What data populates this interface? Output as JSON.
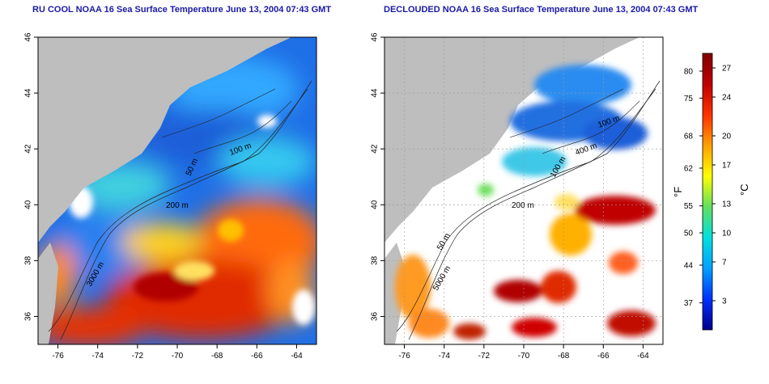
{
  "chart_data": [
    {
      "type": "heatmap",
      "title": "RU COOL NOAA 16 Sea Surface Temperature June 13, 2004 07:43 GMT",
      "x_ticks": [
        "-76",
        "-74",
        "-72",
        "-70",
        "-68",
        "-66",
        "-64"
      ],
      "y_ticks": [
        "36",
        "38",
        "40",
        "42",
        "44",
        "46"
      ],
      "xlim": [
        -77,
        -63
      ],
      "ylim": [
        35,
        46
      ],
      "contour_labels": [
        "200 m",
        "50 m",
        "100 m",
        "3000 m"
      ]
    },
    {
      "type": "heatmap",
      "title": "DECLOUDED NOAA 16 Sea Surface Temperature June 13, 2004 07:43 GMT",
      "x_ticks": [
        "-76",
        "-74",
        "-72",
        "-70",
        "-68",
        "-66",
        "-64"
      ],
      "y_ticks": [
        "36",
        "38",
        "40",
        "42",
        "44",
        "46"
      ],
      "xlim": [
        -77,
        -63
      ],
      "ylim": [
        35,
        46
      ],
      "grid": true,
      "contour_labels": [
        "200 m",
        "50 m",
        "100 m",
        "400 m",
        "100 m",
        "5000 m"
      ]
    }
  ],
  "colorbar": {
    "fahrenheit_label": "°F",
    "celsius_label": "°C",
    "fahrenheit_ticks": [
      "80",
      "75",
      "68",
      "62",
      "55",
      "50",
      "44",
      "37"
    ],
    "celsius_ticks": [
      "27",
      "24",
      "20",
      "17",
      "13",
      "10",
      "7",
      "3"
    ],
    "colors": [
      "#00008b",
      "#0030ff",
      "#00a0ff",
      "#00e0e0",
      "#60e060",
      "#ffff00",
      "#ffa000",
      "#ff3000",
      "#c00000",
      "#800000"
    ]
  }
}
